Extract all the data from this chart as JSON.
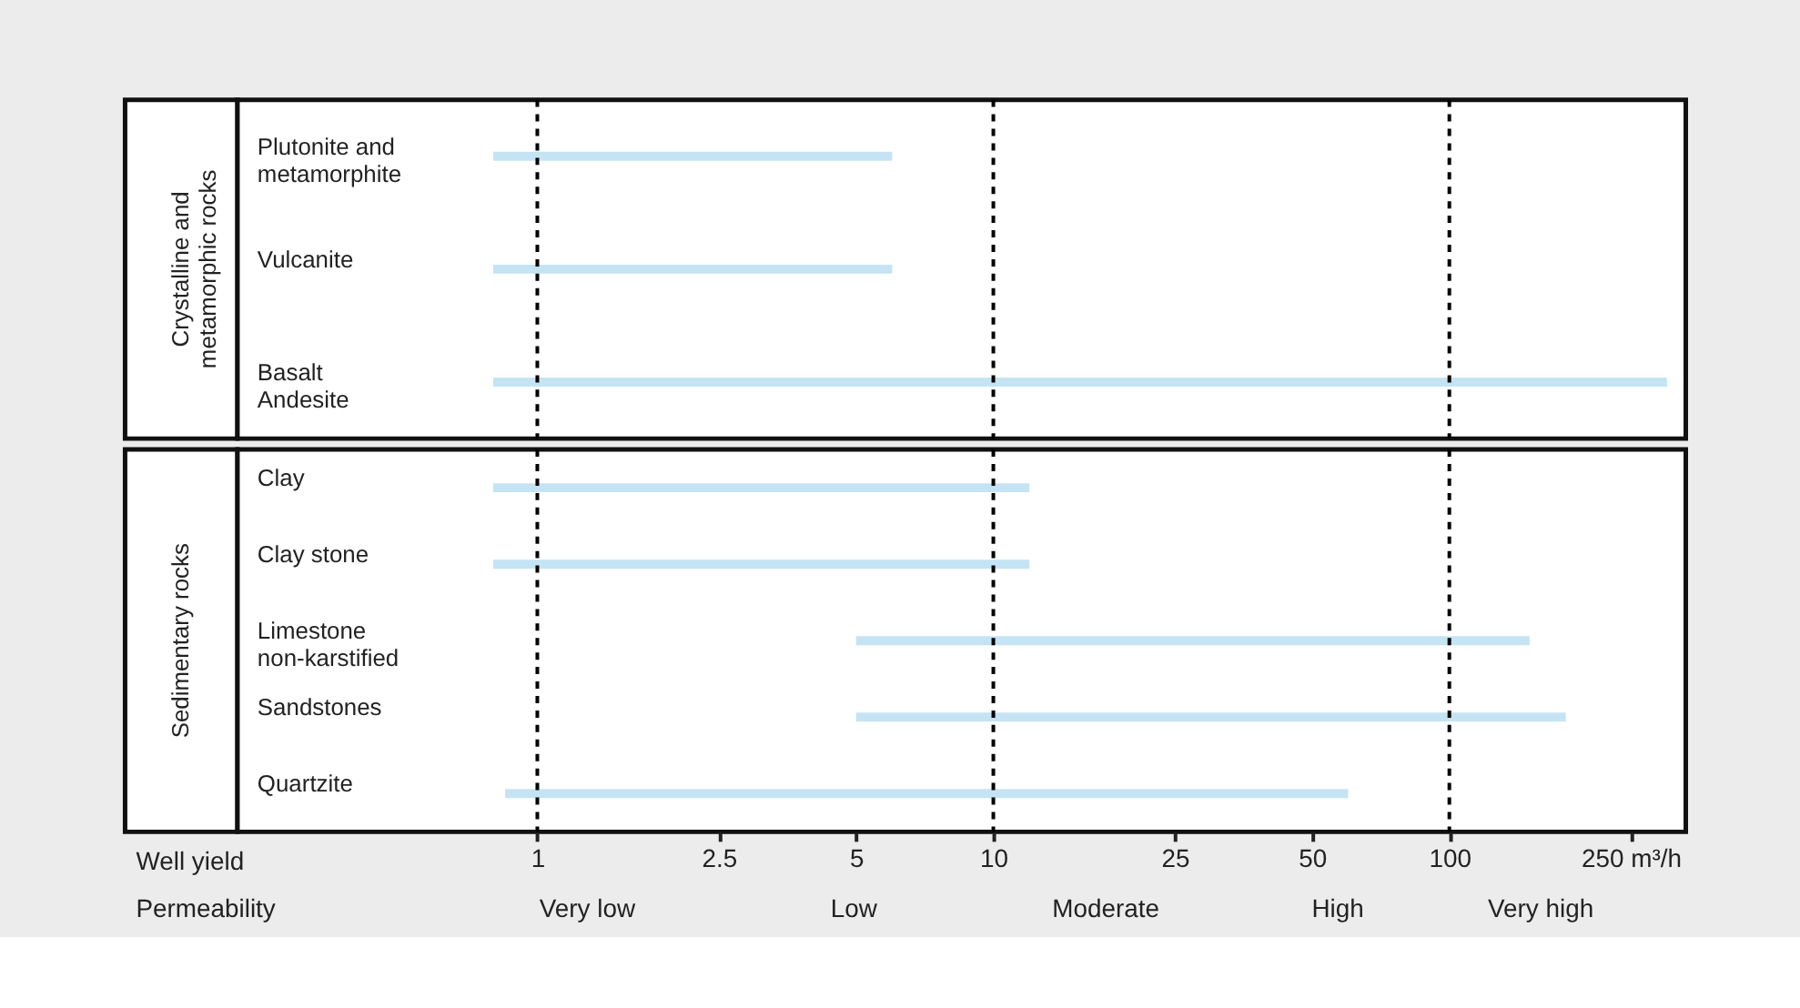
{
  "chart_data": [
    {
      "type": "bar",
      "orientation": "horizontal",
      "log": "x",
      "tick_labels": "y",
      "ylabel": "Crystalline and\nmetamorphic rocks",
      "categories": [
        "Plutonite and\nmetamorphite",
        "Vulcanite",
        "Basalt\nAndesite"
      ],
      "base": [
        0.8,
        0.8,
        0.8
      ],
      "values": [
        5.2,
        5.2,
        299.2
      ],
      "color": "#c5e4f3",
      "xlim": [
        0.22,
        330
      ],
      "ref_lines": [
        {
          "axis": "x",
          "value": 1,
          "color": "#000000",
          "line_style": "dashed"
        },
        {
          "axis": "x",
          "value": 10,
          "color": "#000000",
          "line_style": "dashed"
        },
        {
          "axis": "x",
          "value": 100,
          "color": "#000000",
          "line_style": "dashed"
        }
      ],
      "grid": false
    },
    {
      "type": "bar",
      "orientation": "horizontal",
      "log": "x",
      "ylabel": "Sedimentary rocks",
      "categories": [
        "Clay",
        "Clay stone",
        "Limestone\nnon-karstified",
        "Sandstones",
        "Quartzite"
      ],
      "base": [
        0.8,
        0.8,
        5,
        5,
        0.85
      ],
      "values": [
        11.2,
        11.2,
        145,
        175,
        59.15
      ],
      "color": "#c5e4f3",
      "xlim": [
        0.22,
        330
      ],
      "xticks": [
        1,
        2.5,
        5,
        10,
        25,
        50,
        100,
        {
          "value": 250,
          "label": "250 m³/h"
        }
      ],
      "xlabel": "Well yield",
      "ref_lines": [
        {
          "axis": "x",
          "value": 1,
          "color": "#000000",
          "line_style": "dashed"
        },
        {
          "axis": "x",
          "value": 10,
          "color": "#000000",
          "line_style": "dashed"
        },
        {
          "axis": "x",
          "value": 100,
          "color": "#000000",
          "line_style": "dashed"
        }
      ],
      "annotations": [
        "Permeability",
        "Very low",
        "Low",
        "Moderate",
        "High",
        "Very high"
      ],
      "grid": false
    }
  ]
}
